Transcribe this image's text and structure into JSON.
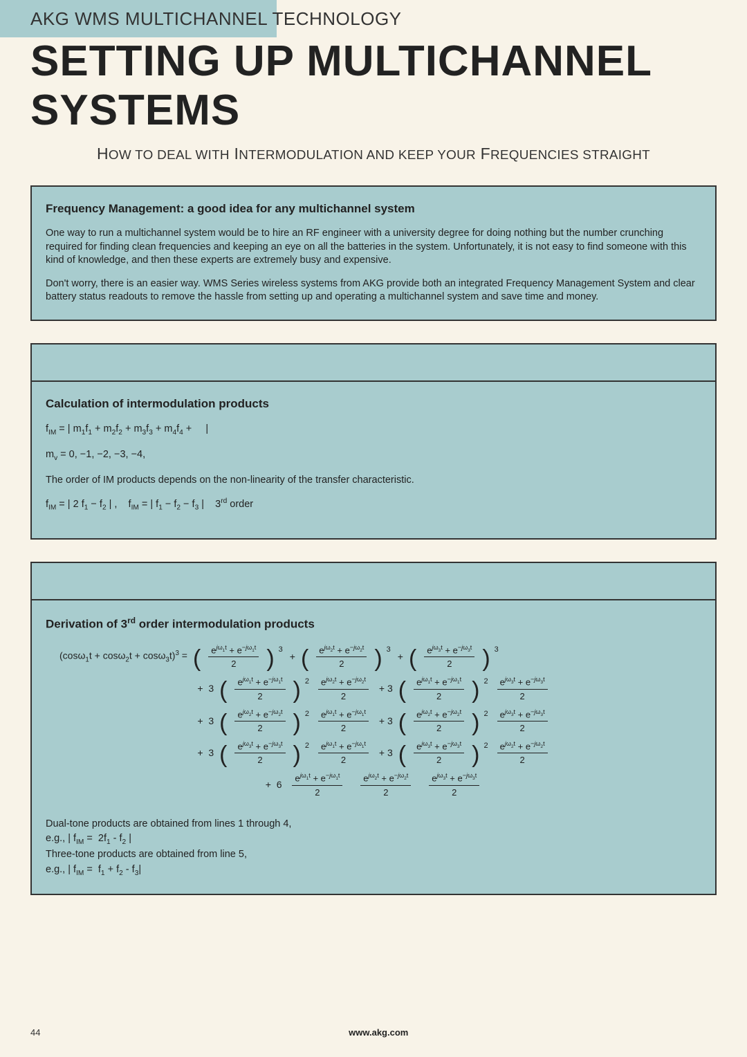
{
  "pretitle": "AKG WMS MULTICHANNEL TECHNOLOGY",
  "title": "SETTING UP MULTICHANNEL SYSTEMS",
  "subtitle": "How to deal with Intermodulation and keep your Frequencies straight",
  "panel1": {
    "heading": "Frequency Management: a good idea for any multichannel system",
    "para1": "One way to run a multichannel system would be to hire an RF engineer with a university degree for doing nothing but the number crunching required for finding clean frequencies and keeping an eye on all the batteries in the system. Unfortunately, it is not easy to find someone with this kind of knowledge, and then these experts are extremely busy and expensive.",
    "para2": "Don't worry, there is an easier way. WMS Series wireless systems from AKG provide both an integrated Frequency Management System and clear battery status readouts to remove the hassle from setting up and operating a multichannel system and save time and money."
  },
  "panel2": {
    "heading": "Calculation of intermodulation products",
    "f_im_general": "fIM = | m1f1 + m2f2 + m3f3 + m4f4 + … |",
    "m_values": "mv = 0, −1, −2, −3, −4, …",
    "order_text": "The order of IM products depends on the non-linearity of the transfer characteristic.",
    "third_order": "fIM = | 2 f1 − f2 | ,   fIM = | f1 − f2 − f3 |   3rd order"
  },
  "panel3": {
    "heading": "Derivation of 3rd order intermodulation products",
    "lhs": "(cosω1t + cosω2t + cosω3t)3 = ",
    "note1": "Dual-tone products are obtained from lines 1 through 4,",
    "note1b": "e.g., | fIM =  2f1 - f2 |",
    "note2": "Three-tone products are obtained from line 5,",
    "note2b": "e.g., | fIM =  f1 + f2 - f3|"
  },
  "footer": {
    "page": "44",
    "url": "www.akg.com"
  },
  "style": {
    "bg": "#f8f3e8",
    "panel_bg": "#a8ccce",
    "border": "#333333",
    "text": "#222222"
  }
}
